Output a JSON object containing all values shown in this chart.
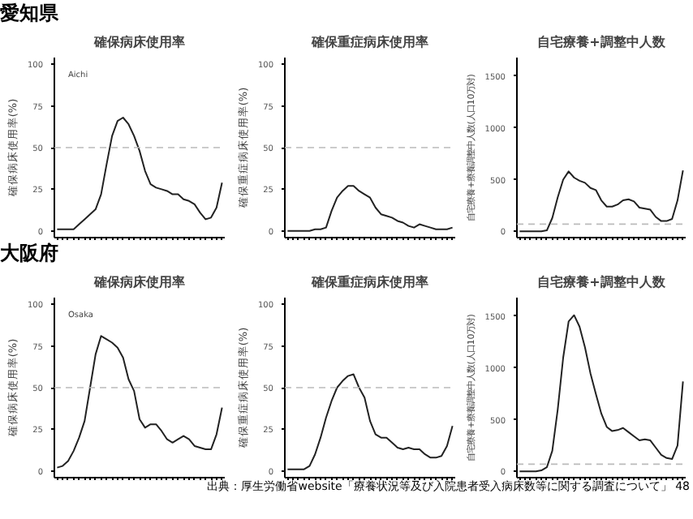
{
  "chart_data": [
    {
      "type": "line",
      "title": "確保病床使用率",
      "ylabel": "確保病床使用率(%)",
      "annotations": [
        "愛知県",
        "Aichi"
      ],
      "categories": [
        null,
        null,
        null,
        null,
        null,
        null,
        null,
        null,
        null,
        null,
        null,
        null,
        null,
        null,
        null,
        null,
        null,
        null,
        null,
        null,
        null,
        null,
        null,
        null,
        null,
        null,
        null,
        null,
        null,
        null,
        null
      ],
      "series": [
        {
          "color": "#222222",
          "values": [
            1,
            1,
            1,
            1,
            4,
            7,
            10,
            13,
            22,
            40,
            57,
            66,
            68,
            64,
            57,
            48,
            36,
            28,
            26,
            25,
            24,
            22,
            22,
            19,
            18,
            16,
            11,
            7,
            8,
            14,
            29
          ]
        }
      ],
      "ylim": [
        -4,
        104
      ],
      "yticks": [
        0,
        25,
        50,
        75,
        100
      ],
      "ref_lines": [
        {
          "axis": "y",
          "value": 50,
          "color": "#bbbbbb",
          "line_style": "dashed"
        }
      ],
      "grid": false,
      "tick_labels": "y"
    },
    {
      "type": "line",
      "title": "確保重症病床使用率",
      "ylabel": "確保重症病床使用率(%)",
      "categories": [
        null,
        null,
        null,
        null,
        null,
        null,
        null,
        null,
        null,
        null,
        null,
        null,
        null,
        null,
        null,
        null,
        null,
        null,
        null,
        null,
        null,
        null,
        null,
        null,
        null,
        null,
        null,
        null,
        null,
        null,
        null
      ],
      "series": [
        {
          "color": "#222222",
          "values": [
            0,
            0,
            0,
            0,
            0,
            1,
            1,
            2,
            12,
            20,
            24,
            27,
            27,
            24,
            22,
            20,
            14,
            10,
            9,
            8,
            6,
            5,
            3,
            2,
            4,
            3,
            2,
            1,
            1,
            1,
            2
          ]
        }
      ],
      "ylim": [
        -4,
        104
      ],
      "yticks": [
        0,
        25,
        50,
        75,
        100
      ],
      "ref_lines": [
        {
          "axis": "y",
          "value": 50,
          "color": "#bbbbbb",
          "line_style": "dashed"
        }
      ],
      "grid": false,
      "tick_labels": "y"
    },
    {
      "type": "line",
      "title": "自宅療養+調整中人数",
      "ylabel": "自宅療養+療養調整中人数(人口10万対)",
      "categories": [
        null,
        null,
        null,
        null,
        null,
        null,
        null,
        null,
        null,
        null,
        null,
        null,
        null,
        null,
        null,
        null,
        null,
        null,
        null,
        null,
        null,
        null,
        null,
        null,
        null,
        null,
        null,
        null,
        null,
        null,
        null
      ],
      "series": [
        {
          "color": "#222222",
          "values": [
            0,
            0,
            0,
            0,
            0,
            10,
            130,
            330,
            500,
            580,
            520,
            490,
            470,
            420,
            400,
            300,
            240,
            240,
            260,
            300,
            310,
            290,
            230,
            220,
            210,
            140,
            100,
            100,
            120,
            300,
            590
          ]
        }
      ],
      "ylim": [
        -60,
        1680
      ],
      "yticks": [
        0,
        500,
        1000,
        1500
      ],
      "ref_lines": [
        {
          "axis": "y",
          "value": 70,
          "color": "#bbbbbb",
          "line_style": "dashed"
        }
      ],
      "grid": false,
      "tick_labels": "y"
    },
    {
      "type": "line",
      "title": "確保病床使用率",
      "ylabel": "確保病床使用率(%)",
      "annotations": [
        "大阪府",
        "Osaka"
      ],
      "categories": [
        null,
        null,
        null,
        null,
        null,
        null,
        null,
        null,
        null,
        null,
        null,
        null,
        null,
        null,
        null,
        null,
        null,
        null,
        null,
        null,
        null,
        null,
        null,
        null,
        null,
        null,
        null,
        null,
        null,
        null,
        null
      ],
      "series": [
        {
          "color": "#222222",
          "values": [
            2,
            3,
            6,
            12,
            20,
            30,
            50,
            70,
            81,
            79,
            77,
            74,
            68,
            55,
            48,
            31,
            26,
            28,
            28,
            24,
            19,
            17,
            19,
            21,
            19,
            15,
            14,
            13,
            13,
            22,
            38
          ]
        }
      ],
      "ylim": [
        -4,
        104
      ],
      "yticks": [
        0,
        25,
        50,
        75,
        100
      ],
      "ref_lines": [
        {
          "axis": "y",
          "value": 50,
          "color": "#bbbbbb",
          "line_style": "dashed"
        }
      ],
      "grid": false,
      "tick_labels": "y"
    },
    {
      "type": "line",
      "title": "確保重症病床使用率",
      "ylabel": "確保重症病床使用率(%)",
      "categories": [
        null,
        null,
        null,
        null,
        null,
        null,
        null,
        null,
        null,
        null,
        null,
        null,
        null,
        null,
        null,
        null,
        null,
        null,
        null,
        null,
        null,
        null,
        null,
        null,
        null,
        null,
        null,
        null,
        null,
        null,
        null
      ],
      "series": [
        {
          "color": "#222222",
          "values": [
            1,
            1,
            1,
            1,
            3,
            10,
            20,
            32,
            42,
            50,
            54,
            57,
            58,
            50,
            44,
            30,
            22,
            20,
            20,
            17,
            14,
            13,
            14,
            13,
            13,
            10,
            8,
            8,
            9,
            15,
            27
          ]
        }
      ],
      "ylim": [
        -4,
        104
      ],
      "yticks": [
        0,
        25,
        50,
        75,
        100
      ],
      "ref_lines": [
        {
          "axis": "y",
          "value": 50,
          "color": "#bbbbbb",
          "line_style": "dashed"
        }
      ],
      "grid": false,
      "tick_labels": "y"
    },
    {
      "type": "line",
      "title": "自宅療養+調整中人数",
      "ylabel": "自宅療養+療養調整中人数(人口10万対)",
      "annotations": [
        "出典：厚生労働省website「療養状況等及び入院患者受入病床数等に関する調査について」",
        "48"
      ],
      "categories": [
        null,
        null,
        null,
        null,
        null,
        null,
        null,
        null,
        null,
        null,
        null,
        null,
        null,
        null,
        null,
        null,
        null,
        null,
        null,
        null,
        null,
        null,
        null,
        null,
        null,
        null,
        null,
        null,
        null,
        null,
        null
      ],
      "series": [
        {
          "color": "#222222",
          "values": [
            0,
            0,
            0,
            0,
            10,
            40,
            200,
            600,
            1100,
            1450,
            1510,
            1400,
            1200,
            950,
            750,
            560,
            430,
            390,
            400,
            420,
            380,
            340,
            300,
            310,
            300,
            230,
            160,
            130,
            120,
            250,
            870
          ]
        }
      ],
      "ylim": [
        -60,
        1680
      ],
      "yticks": [
        0,
        500,
        1000,
        1500
      ],
      "ref_lines": [
        {
          "axis": "y",
          "value": 70,
          "color": "#bbbbbb",
          "line_style": "dashed"
        }
      ],
      "grid": false,
      "tick_labels": "y"
    }
  ]
}
